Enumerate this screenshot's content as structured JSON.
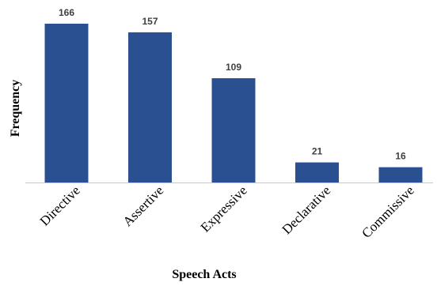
{
  "chart_data": {
    "type": "bar",
    "title": "",
    "xlabel": "Speech Acts",
    "ylabel": "Frequency",
    "categories": [
      "Directive",
      "Assertive",
      "Expressive",
      "Declarative",
      "Commissive"
    ],
    "values": [
      166,
      157,
      109,
      21,
      16
    ],
    "ylim": [
      0,
      166
    ],
    "grid": false,
    "legend": "none",
    "data_labels": true,
    "colors": {
      "bar": "#2b5091",
      "axis": "#c8c8c8",
      "label": "#404040"
    }
  }
}
